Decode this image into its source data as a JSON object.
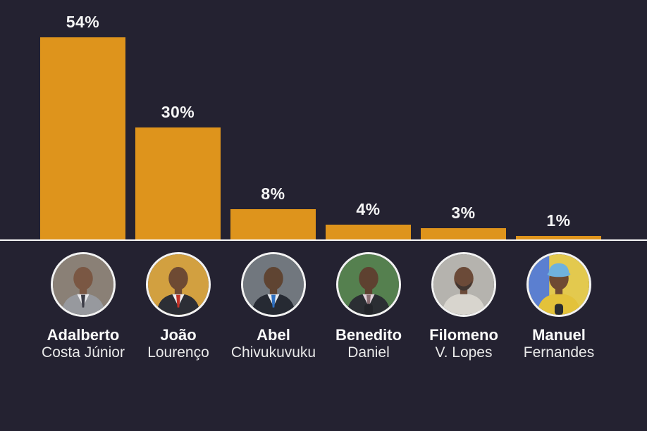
{
  "page": {
    "background": "#242231",
    "accent_color": "#DE941C",
    "baseline_color": "#F8F8F8",
    "text_color": "#F5F5F5"
  },
  "chart_data": {
    "type": "bar",
    "title": "",
    "categories": [
      "Adalberto Costa Júnior",
      "João Lourenço",
      "Abel Chivukuvuku",
      "Benedito Daniel",
      "Filomeno V. Lopes",
      "Manuel Fernandes"
    ],
    "values": [
      54,
      30,
      8,
      4,
      3,
      1
    ],
    "value_labels": [
      "54%",
      "30%",
      "8%",
      "4%",
      "3%",
      "1%"
    ],
    "bar_color": "#DE941C",
    "label_color": "#F5F5F5",
    "baseline_color": "#F8F8F8",
    "ylim": [
      0,
      57
    ],
    "grid": false,
    "legend": false,
    "xlabel": "",
    "ylabel": ""
  },
  "candidates": [
    {
      "first_name": "Adalberto",
      "last_name": "Costa Júnior",
      "value_label": "54%",
      "avatar": {
        "background": "#8A8076",
        "jacket": "#97999E",
        "skin": "#7A5743",
        "tie": "#3C3C46",
        "shirt": "#E9E9EC"
      }
    },
    {
      "first_name": "João",
      "last_name": "Lourenço",
      "value_label": "30%",
      "avatar": {
        "background": "#D2A040",
        "jacket": "#2C2E35",
        "skin": "#6E4A33",
        "tie": "#C23227",
        "shirt": "#EFEFEF"
      }
    },
    {
      "first_name": "Abel",
      "last_name": "Chivukuvuku",
      "value_label": "8%",
      "avatar": {
        "background": "#71777E",
        "jacket": "#262A33",
        "skin": "#5F4432",
        "tie": "#2E6FC0",
        "shirt": "#E8EBEF"
      }
    },
    {
      "first_name": "Benedito",
      "last_name": "Daniel",
      "value_label": "4%",
      "avatar": {
        "background": "#55804F",
        "jacket": "#2B2E33",
        "skin": "#5E4130",
        "tie": "#8A6E72",
        "shirt": "#E3D4DC",
        "microphone": "#23252A"
      }
    },
    {
      "first_name": "Filomeno",
      "last_name": "V. Lopes",
      "value_label": "3%",
      "avatar": {
        "background": "#B5B3AE",
        "jacket": "#D8D5CE",
        "skin": "#6B4A38",
        "shirt": "#D8D5CE",
        "beard": "#3A3230"
      }
    },
    {
      "first_name": "Manuel",
      "last_name": "Fernandes",
      "value_label": "1%",
      "avatar": {
        "background": "#E3C94E",
        "background_left": "#5B7FD0",
        "jacket": "#E3C23A",
        "skin": "#6E4A33",
        "shirt": "#E3C23A",
        "cap": "#6FB2DE",
        "microphone": "#2A2C30"
      }
    }
  ]
}
